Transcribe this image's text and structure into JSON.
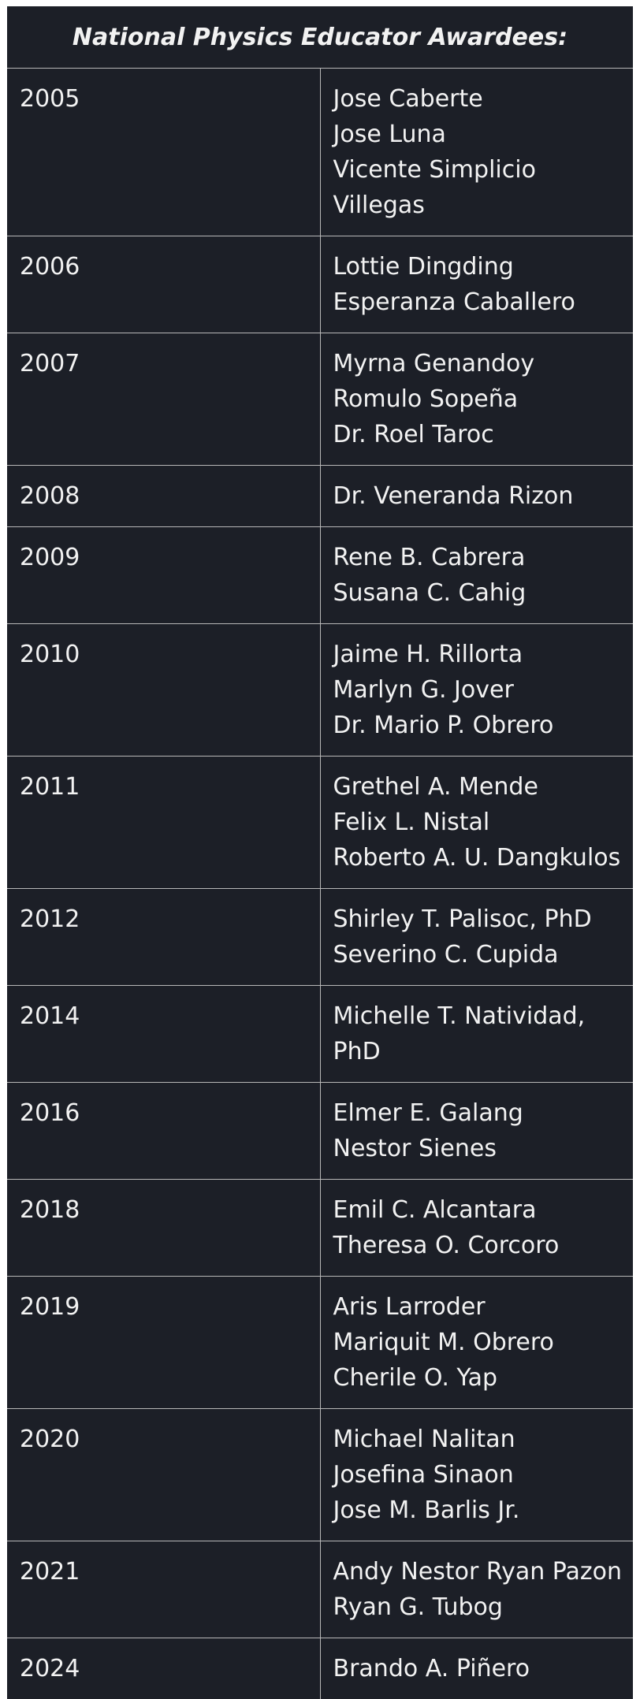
{
  "header": {
    "title": "National Physics Educator Awardees:"
  },
  "table": {
    "rows": [
      {
        "year": "2005",
        "names": [
          "Jose Caberte",
          "Jose Luna",
          "Vicente Simplicio Villegas"
        ]
      },
      {
        "year": "2006",
        "names": [
          "Lottie Dingding",
          "Esperanza Caballero"
        ]
      },
      {
        "year": "2007",
        "names": [
          "Myrna Genandoy",
          "Romulo Sopeña",
          "Dr. Roel Taroc"
        ]
      },
      {
        "year": "2008",
        "names": [
          "Dr. Veneranda Rizon"
        ]
      },
      {
        "year": "2009",
        "names": [
          "Rene B. Cabrera",
          "Susana C. Cahig"
        ]
      },
      {
        "year": "2010",
        "names": [
          "Jaime H. Rillorta",
          "Marlyn G. Jover",
          "Dr. Mario P. Obrero"
        ]
      },
      {
        "year": "2011",
        "names": [
          "Grethel A. Mende",
          "Felix L. Nistal",
          "Roberto A. U. Dangkulos"
        ]
      },
      {
        "year": "2012",
        "names": [
          "Shirley T. Palisoc, PhD",
          "Severino C. Cupida"
        ]
      },
      {
        "year": "2014",
        "names": [
          "Michelle T. Natividad, PhD"
        ]
      },
      {
        "year": "2016",
        "names": [
          "Elmer E. Galang",
          "Nestor Sienes"
        ]
      },
      {
        "year": "2018",
        "names": [
          "Emil C. Alcantara",
          "Theresa O. Corcoro"
        ]
      },
      {
        "year": "2019",
        "names": [
          "Aris Larroder",
          "Mariquit M. Obrero",
          "Cherile O. Yap"
        ]
      },
      {
        "year": "2020",
        "names": [
          "Michael Nalitan",
          "Josefina Sinaon",
          "Jose M. Barlis Jr."
        ]
      },
      {
        "year": "2021",
        "names": [
          "Andy Nestor Ryan Pazon",
          "Ryan G. Tubog"
        ]
      },
      {
        "year": "2024",
        "names": [
          "Brando A. Piñero"
        ]
      }
    ]
  }
}
